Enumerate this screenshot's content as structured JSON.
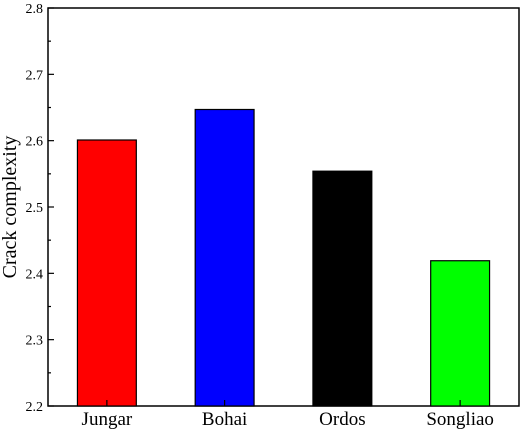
{
  "chart_data": {
    "type": "bar",
    "categories": [
      "Jungar",
      "Bohai",
      "Ordos",
      "Songliao"
    ],
    "values": [
      2.601,
      2.647,
      2.554,
      2.419
    ],
    "colors": [
      "#ff0000",
      "#0000ff",
      "#000000",
      "#00ff00"
    ],
    "title": "",
    "xlabel": "",
    "ylabel": "Crack complexity",
    "ylim": [
      2.2,
      2.8
    ],
    "yticks": [
      "2.2",
      "2.3",
      "2.4",
      "2.5",
      "2.6",
      "2.7",
      "2.8"
    ],
    "grid": false,
    "legend": "none"
  }
}
